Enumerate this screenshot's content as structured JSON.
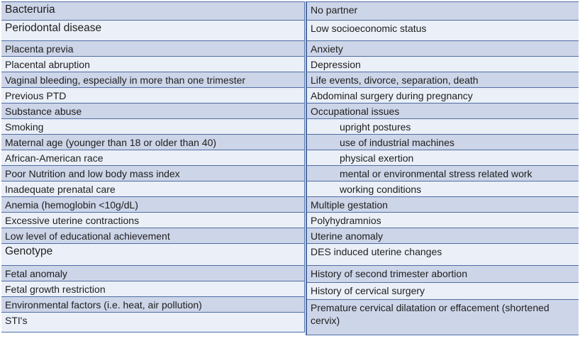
{
  "colors": {
    "band_row": "#cdd5e8",
    "light_row": "#eaeff8",
    "border": "#4e6da3",
    "text": "#1e1e1e"
  },
  "table": {
    "left_rows": [
      {
        "text": "Bacteruria"
      },
      {
        "text": "Periodontal disease"
      },
      {
        "text": "Placenta previa"
      },
      {
        "text": "Placental abruption"
      },
      {
        "text": "Vaginal bleeding, especially in more than one trimester"
      },
      {
        "text": "Previous PTD"
      },
      {
        "text": "Substance abuse"
      },
      {
        "text": "Smoking"
      },
      {
        "text": "Maternal age (younger than 18 or older than 40)"
      },
      {
        "text": "African-American race"
      },
      {
        "text": "Poor Nutrition and low body mass index"
      },
      {
        "text": "Inadequate prenatal care"
      },
      {
        "text": "Anemia (hemoglobin <10g/dL)"
      },
      {
        "text": "Excessive uterine contractions"
      },
      {
        "text": "Low level of educational achievement"
      },
      {
        "text": "Genotype"
      },
      {
        "text": "Fetal anomaly"
      },
      {
        "text": "Fetal growth restriction"
      },
      {
        "text": "Environmental factors (i.e. heat, air pollution)"
      },
      {
        "text": "STI's"
      }
    ],
    "right_rows": [
      {
        "text": "No partner"
      },
      {
        "text": "Low socioeconomic status"
      },
      {
        "text": "Anxiety"
      },
      {
        "text": "Depression"
      },
      {
        "text": "Life events, divorce, separation, death"
      },
      {
        "text": "Abdominal surgery during pregnancy"
      },
      {
        "text": "Occupational issues"
      },
      {
        "text": "upright postures",
        "indent": true
      },
      {
        "text": "use of industrial machines",
        "indent": true
      },
      {
        "text": "physical exertion",
        "indent": true
      },
      {
        "text": "mental  or environmental stress related work",
        "indent": true
      },
      {
        "text": "working conditions",
        "indent": true
      },
      {
        "text": "Multiple gestation"
      },
      {
        "text": "Polyhydramnios"
      },
      {
        "text": "Uterine anomaly"
      },
      {
        "text": "DES induced uterine changes"
      },
      {
        "text": "History of second trimester abortion"
      },
      {
        "text": "History of cervical surgery"
      },
      {
        "text": "Premature cervical dilatation or effacement (shortened cervix)"
      }
    ]
  }
}
